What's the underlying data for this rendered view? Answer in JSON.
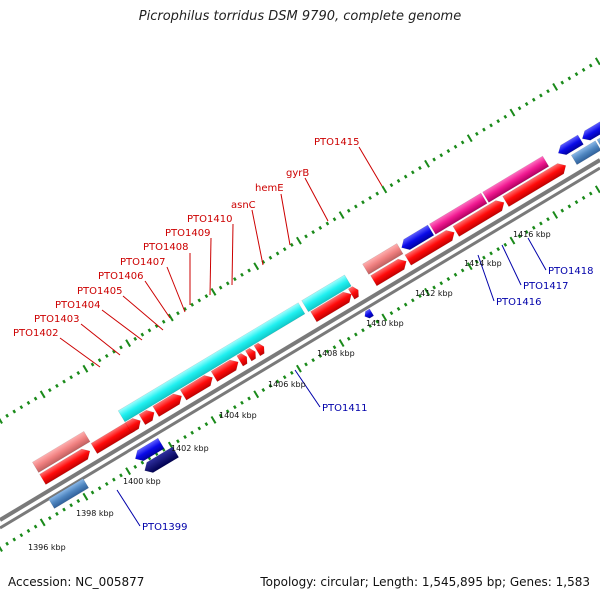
{
  "title": "Picrophilus torridus DSM 9790, complete genome",
  "footer": {
    "accession": "Accession: NC_005877",
    "summary": "Topology: circular; Length: 1,545,895 bp; Genes: 1,583"
  },
  "scale_labels": [
    "1396 kbp",
    "1398 kbp",
    "1400 kbp",
    "1402 kbp",
    "1404 kbp",
    "1406 kbp",
    "1408 kbp",
    "1410 kbp",
    "1412 kbp",
    "1414 kbp",
    "1416 kbp"
  ],
  "gene_labels_top": [
    "PTO1402",
    "PTO1403",
    "PTO1404",
    "PTO1405",
    "PTO1406",
    "PTO1407",
    "PTO1408",
    "PTO1409",
    "PTO1410",
    "asnC",
    "hemE",
    "gyrB",
    "PTO1415"
  ],
  "gene_labels_bottom": [
    "PTO1399",
    "PTO1411",
    "PTO1416",
    "PTO1417",
    "PTO1418"
  ],
  "colors": {
    "label_top": "#cc0000",
    "label_bottom": "#0000aa",
    "backbone": "#8a8a8a",
    "tick": "#1a8a1a",
    "cds_red": "#ff1010",
    "cds_blue": "#1010e0",
    "cds_navy": "#000070",
    "cds_cyan": "#20f0f0",
    "cds_pink": "#f01890",
    "cds_salmon": "#f08080",
    "cds_steel": "#4f86c0",
    "cds_gray": "#666666",
    "cds_olive": "#c8c890"
  }
}
